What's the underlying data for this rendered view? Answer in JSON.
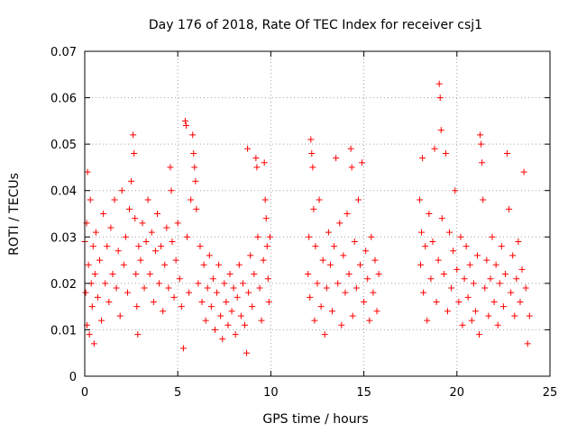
{
  "chart_data": {
    "type": "scatter",
    "title": "Day 176 of 2018, Rate Of TEC Index for receiver csj1",
    "xlabel": "GPS time / hours",
    "ylabel": "ROTI / TECUs",
    "xlim": [
      0,
      25
    ],
    "ylim": [
      0,
      0.07
    ],
    "x_ticks": [
      0,
      5,
      10,
      15,
      20,
      25
    ],
    "x_tick_labels": [
      "0",
      "5",
      "10",
      "15",
      "20",
      "25"
    ],
    "y_ticks": [
      0,
      0.01,
      0.02,
      0.03,
      0.04,
      0.05,
      0.06,
      0.07
    ],
    "y_tick_labels": [
      "0",
      "0.01",
      "0.02",
      "0.03",
      "0.04",
      "0.05",
      "0.06",
      "0.07"
    ],
    "grid": true,
    "legend": "none",
    "marker": "plus",
    "series_color": "#ff0000",
    "series": [
      {
        "name": "ROTI",
        "points": [
          [
            0.0,
            0.029
          ],
          [
            0.05,
            0.018
          ],
          [
            0.1,
            0.033
          ],
          [
            0.12,
            0.011
          ],
          [
            0.15,
            0.044
          ],
          [
            0.2,
            0.024
          ],
          [
            0.25,
            0.009
          ],
          [
            0.3,
            0.038
          ],
          [
            0.35,
            0.02
          ],
          [
            0.4,
            0.015
          ],
          [
            0.45,
            0.028
          ],
          [
            0.5,
            0.007
          ],
          [
            0.55,
            0.022
          ],
          [
            0.6,
            0.031
          ],
          [
            0.7,
            0.017
          ],
          [
            0.8,
            0.025
          ],
          [
            0.9,
            0.012
          ],
          [
            1.0,
            0.035
          ],
          [
            1.1,
            0.02
          ],
          [
            1.2,
            0.028
          ],
          [
            1.3,
            0.016
          ],
          [
            1.4,
            0.032
          ],
          [
            1.5,
            0.022
          ],
          [
            1.6,
            0.038
          ],
          [
            1.7,
            0.019
          ],
          [
            1.8,
            0.027
          ],
          [
            1.9,
            0.013
          ],
          [
            2.0,
            0.04
          ],
          [
            2.1,
            0.024
          ],
          [
            2.2,
            0.03
          ],
          [
            2.3,
            0.018
          ],
          [
            2.4,
            0.036
          ],
          [
            2.5,
            0.042
          ],
          [
            2.6,
            0.052
          ],
          [
            2.65,
            0.048
          ],
          [
            2.7,
            0.034
          ],
          [
            2.75,
            0.022
          ],
          [
            2.8,
            0.015
          ],
          [
            2.85,
            0.009
          ],
          [
            2.9,
            0.028
          ],
          [
            3.0,
            0.025
          ],
          [
            3.1,
            0.033
          ],
          [
            3.2,
            0.019
          ],
          [
            3.3,
            0.029
          ],
          [
            3.4,
            0.038
          ],
          [
            3.5,
            0.022
          ],
          [
            3.6,
            0.031
          ],
          [
            3.7,
            0.016
          ],
          [
            3.8,
            0.027
          ],
          [
            3.9,
            0.035
          ],
          [
            4.0,
            0.02
          ],
          [
            4.1,
            0.028
          ],
          [
            4.2,
            0.014
          ],
          [
            4.3,
            0.024
          ],
          [
            4.4,
            0.032
          ],
          [
            4.5,
            0.019
          ],
          [
            4.6,
            0.045
          ],
          [
            4.65,
            0.04
          ],
          [
            4.7,
            0.029
          ],
          [
            4.8,
            0.017
          ],
          [
            4.9,
            0.025
          ],
          [
            5.0,
            0.033
          ],
          [
            5.1,
            0.021
          ],
          [
            5.2,
            0.015
          ],
          [
            5.3,
            0.006
          ],
          [
            5.4,
            0.055
          ],
          [
            5.45,
            0.054
          ],
          [
            5.5,
            0.03
          ],
          [
            5.6,
            0.018
          ],
          [
            5.7,
            0.038
          ],
          [
            5.8,
            0.052
          ],
          [
            5.85,
            0.048
          ],
          [
            5.9,
            0.045
          ],
          [
            5.95,
            0.042
          ],
          [
            6.0,
            0.036
          ],
          [
            6.1,
            0.02
          ],
          [
            6.2,
            0.028
          ],
          [
            6.3,
            0.016
          ],
          [
            6.4,
            0.024
          ],
          [
            6.5,
            0.012
          ],
          [
            6.6,
            0.019
          ],
          [
            6.7,
            0.026
          ],
          [
            6.8,
            0.015
          ],
          [
            6.9,
            0.021
          ],
          [
            7.0,
            0.01
          ],
          [
            7.1,
            0.018
          ],
          [
            7.2,
            0.024
          ],
          [
            7.3,
            0.013
          ],
          [
            7.4,
            0.008
          ],
          [
            7.5,
            0.02
          ],
          [
            7.6,
            0.016
          ],
          [
            7.7,
            0.011
          ],
          [
            7.8,
            0.022
          ],
          [
            7.9,
            0.014
          ],
          [
            8.0,
            0.019
          ],
          [
            8.1,
            0.009
          ],
          [
            8.2,
            0.017
          ],
          [
            8.3,
            0.024
          ],
          [
            8.4,
            0.013
          ],
          [
            8.5,
            0.02
          ],
          [
            8.6,
            0.011
          ],
          [
            8.7,
            0.005
          ],
          [
            8.75,
            0.049
          ],
          [
            8.8,
            0.018
          ],
          [
            8.9,
            0.026
          ],
          [
            9.0,
            0.015
          ],
          [
            9.1,
            0.022
          ],
          [
            9.2,
            0.047
          ],
          [
            9.25,
            0.045
          ],
          [
            9.3,
            0.03
          ],
          [
            9.4,
            0.019
          ],
          [
            9.5,
            0.012
          ],
          [
            9.6,
            0.025
          ],
          [
            9.65,
            0.046
          ],
          [
            9.7,
            0.038
          ],
          [
            9.75,
            0.034
          ],
          [
            9.8,
            0.028
          ],
          [
            9.85,
            0.021
          ],
          [
            9.9,
            0.016
          ],
          [
            9.95,
            0.03
          ],
          [
            12.0,
            0.022
          ],
          [
            12.05,
            0.03
          ],
          [
            12.1,
            0.017
          ],
          [
            12.15,
            0.051
          ],
          [
            12.2,
            0.048
          ],
          [
            12.25,
            0.045
          ],
          [
            12.3,
            0.036
          ],
          [
            12.35,
            0.012
          ],
          [
            12.4,
            0.028
          ],
          [
            12.5,
            0.02
          ],
          [
            12.6,
            0.038
          ],
          [
            12.7,
            0.015
          ],
          [
            12.8,
            0.025
          ],
          [
            12.9,
            0.009
          ],
          [
            13.0,
            0.019
          ],
          [
            13.1,
            0.031
          ],
          [
            13.2,
            0.024
          ],
          [
            13.3,
            0.014
          ],
          [
            13.4,
            0.028
          ],
          [
            13.5,
            0.047
          ],
          [
            13.6,
            0.02
          ],
          [
            13.7,
            0.033
          ],
          [
            13.8,
            0.011
          ],
          [
            13.9,
            0.026
          ],
          [
            14.0,
            0.018
          ],
          [
            14.1,
            0.035
          ],
          [
            14.2,
            0.022
          ],
          [
            14.3,
            0.049
          ],
          [
            14.35,
            0.045
          ],
          [
            14.4,
            0.013
          ],
          [
            14.5,
            0.029
          ],
          [
            14.6,
            0.019
          ],
          [
            14.7,
            0.038
          ],
          [
            14.8,
            0.024
          ],
          [
            14.9,
            0.046
          ],
          [
            15.0,
            0.016
          ],
          [
            15.1,
            0.027
          ],
          [
            15.2,
            0.021
          ],
          [
            15.3,
            0.012
          ],
          [
            15.4,
            0.03
          ],
          [
            15.5,
            0.018
          ],
          [
            15.6,
            0.025
          ],
          [
            15.7,
            0.014
          ],
          [
            15.8,
            0.022
          ],
          [
            18.0,
            0.038
          ],
          [
            18.05,
            0.024
          ],
          [
            18.1,
            0.031
          ],
          [
            18.15,
            0.047
          ],
          [
            18.2,
            0.018
          ],
          [
            18.3,
            0.028
          ],
          [
            18.4,
            0.012
          ],
          [
            18.5,
            0.035
          ],
          [
            18.6,
            0.021
          ],
          [
            18.7,
            0.029
          ],
          [
            18.8,
            0.049
          ],
          [
            18.9,
            0.016
          ],
          [
            19.0,
            0.025
          ],
          [
            19.05,
            0.063
          ],
          [
            19.1,
            0.06
          ],
          [
            19.15,
            0.053
          ],
          [
            19.2,
            0.034
          ],
          [
            19.3,
            0.022
          ],
          [
            19.4,
            0.048
          ],
          [
            19.5,
            0.014
          ],
          [
            19.6,
            0.031
          ],
          [
            19.7,
            0.019
          ],
          [
            19.8,
            0.027
          ],
          [
            19.9,
            0.04
          ],
          [
            20.0,
            0.023
          ],
          [
            20.1,
            0.016
          ],
          [
            20.2,
            0.03
          ],
          [
            20.3,
            0.011
          ],
          [
            20.4,
            0.021
          ],
          [
            20.5,
            0.028
          ],
          [
            20.6,
            0.017
          ],
          [
            20.7,
            0.024
          ],
          [
            20.8,
            0.012
          ],
          [
            20.9,
            0.02
          ],
          [
            21.0,
            0.014
          ],
          [
            21.1,
            0.026
          ],
          [
            21.2,
            0.009
          ],
          [
            21.25,
            0.052
          ],
          [
            21.3,
            0.05
          ],
          [
            21.35,
            0.046
          ],
          [
            21.4,
            0.038
          ],
          [
            21.5,
            0.019
          ],
          [
            21.6,
            0.025
          ],
          [
            21.7,
            0.013
          ],
          [
            21.8,
            0.021
          ],
          [
            21.9,
            0.03
          ],
          [
            22.0,
            0.016
          ],
          [
            22.1,
            0.024
          ],
          [
            22.2,
            0.011
          ],
          [
            22.3,
            0.02
          ],
          [
            22.4,
            0.028
          ],
          [
            22.5,
            0.015
          ],
          [
            22.6,
            0.022
          ],
          [
            22.7,
            0.048
          ],
          [
            22.8,
            0.036
          ],
          [
            22.9,
            0.018
          ],
          [
            23.0,
            0.026
          ],
          [
            23.1,
            0.013
          ],
          [
            23.2,
            0.021
          ],
          [
            23.3,
            0.029
          ],
          [
            23.4,
            0.016
          ],
          [
            23.5,
            0.023
          ],
          [
            23.6,
            0.044
          ],
          [
            23.7,
            0.019
          ],
          [
            23.8,
            0.007
          ],
          [
            23.9,
            0.013
          ]
        ]
      }
    ]
  }
}
